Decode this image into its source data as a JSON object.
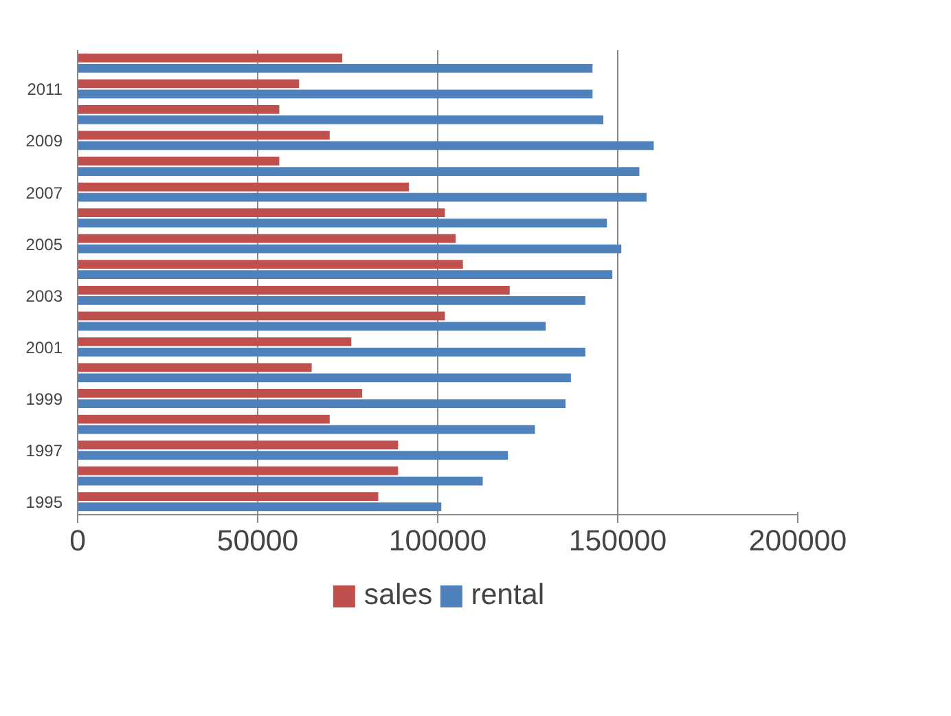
{
  "chart_data": {
    "type": "bar",
    "orientation": "horizontal",
    "categories": [
      null,
      "2011",
      null,
      "2009",
      null,
      "2007",
      null,
      "2005",
      null,
      "2003",
      null,
      "2001",
      null,
      "1999",
      null,
      "1997",
      null,
      "1995"
    ],
    "series": [
      {
        "name": "sales",
        "color": "#c0504d",
        "values": [
          73500,
          61500,
          56000,
          70000,
          56000,
          92000,
          102000,
          105000,
          107000,
          120000,
          102000,
          76000,
          65000,
          79000,
          70000,
          89000,
          89000,
          83500
        ]
      },
      {
        "name": "rental",
        "color": "#4f81bd",
        "values": [
          143000,
          143000,
          146000,
          160000,
          156000,
          158000,
          147000,
          151000,
          148500,
          141000,
          130000,
          141000,
          137000,
          135500,
          127000,
          119500,
          112500,
          101000
        ]
      }
    ],
    "xlim": [
      0,
      200000
    ],
    "xticks": [
      0,
      50000,
      100000,
      150000,
      200000
    ],
    "grid": "x",
    "legend": "bottom"
  }
}
